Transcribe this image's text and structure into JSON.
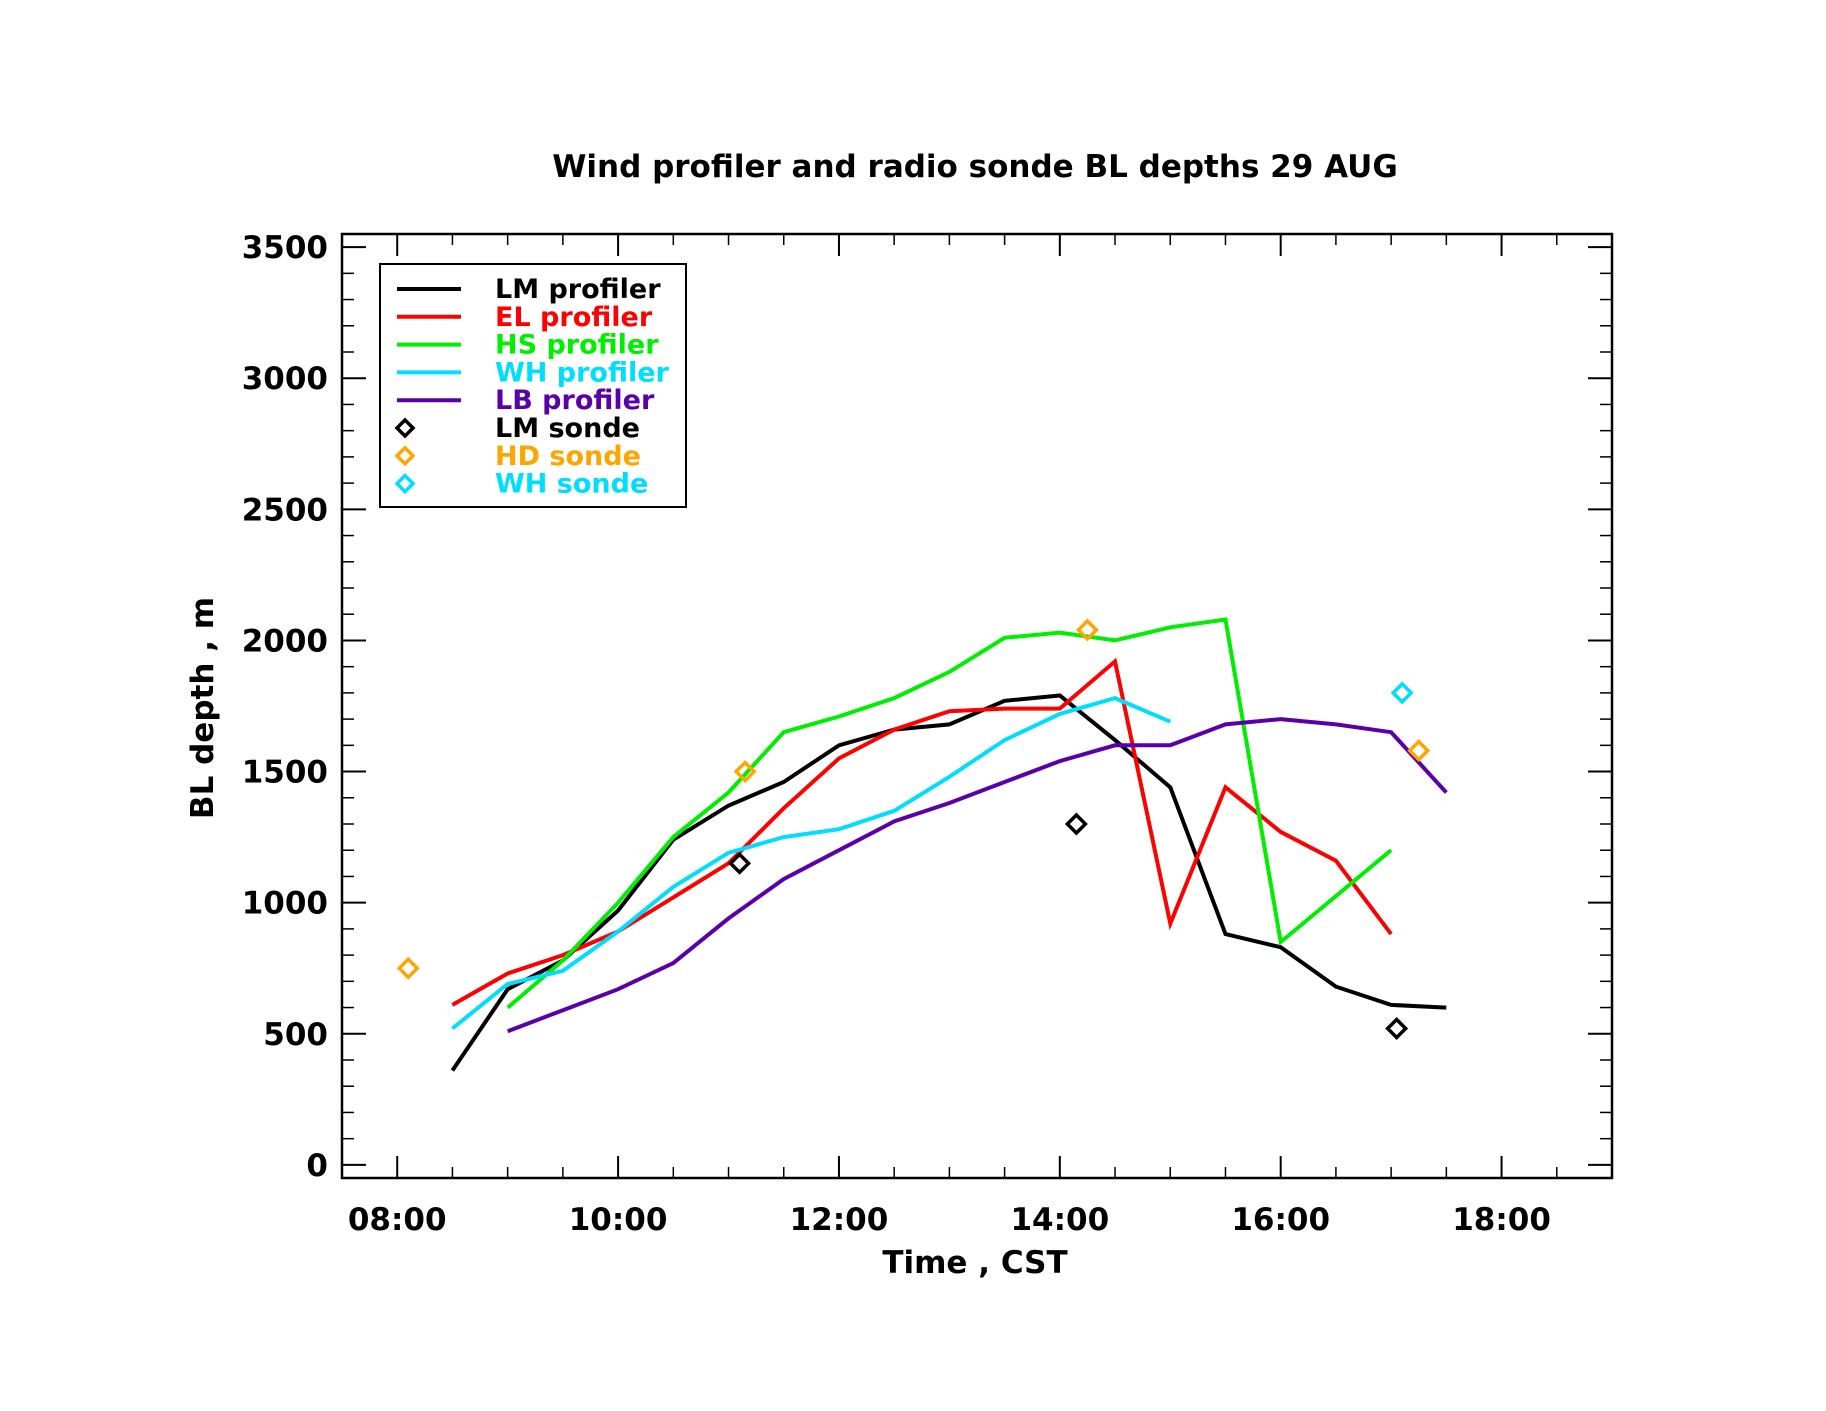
{
  "chart_data": {
    "type": "line",
    "title": "Wind profiler and radio sonde BL depths  29 AUG",
    "xlabel": "Time , CST",
    "ylabel": "BL depth , m",
    "xlim": [
      7.5,
      19.0
    ],
    "ylim": [
      -50,
      3550
    ],
    "grid": false,
    "legend_position": "top-left",
    "x_ticks": [
      {
        "value": 8,
        "label": "08:00"
      },
      {
        "value": 10,
        "label": "10:00"
      },
      {
        "value": 12,
        "label": "12:00"
      },
      {
        "value": 14,
        "label": "14:00"
      },
      {
        "value": 16,
        "label": "16:00"
      },
      {
        "value": 18,
        "label": "18:00"
      }
    ],
    "y_ticks": [
      {
        "value": 0,
        "label": "0"
      },
      {
        "value": 500,
        "label": "500"
      },
      {
        "value": 1000,
        "label": "1000"
      },
      {
        "value": 1500,
        "label": "1500"
      },
      {
        "value": 2000,
        "label": "2000"
      },
      {
        "value": 2500,
        "label": "2500"
      },
      {
        "value": 3000,
        "label": "3000"
      },
      {
        "value": 3500,
        "label": "3500"
      }
    ],
    "series": [
      {
        "name": "LM profiler",
        "kind": "line",
        "color": "#000000",
        "points": [
          [
            8.5,
            360
          ],
          [
            9.0,
            670
          ],
          [
            9.5,
            780
          ],
          [
            10.0,
            970
          ],
          [
            10.5,
            1240
          ],
          [
            11.0,
            1370
          ],
          [
            11.5,
            1460
          ],
          [
            12.0,
            1600
          ],
          [
            12.5,
            1660
          ],
          [
            13.0,
            1680
          ],
          [
            13.5,
            1770
          ],
          [
            14.0,
            1790
          ],
          [
            14.5,
            1620
          ],
          [
            15.0,
            1440
          ],
          [
            15.5,
            880
          ],
          [
            16.0,
            830
          ],
          [
            16.5,
            680
          ],
          [
            17.0,
            610
          ],
          [
            17.5,
            600
          ]
        ]
      },
      {
        "name": "EL profiler",
        "kind": "line",
        "color": "#ff0000",
        "points": [
          [
            8.5,
            610
          ],
          [
            9.0,
            730
          ],
          [
            9.5,
            800
          ],
          [
            10.0,
            890
          ],
          [
            10.5,
            1020
          ],
          [
            11.0,
            1150
          ],
          [
            11.5,
            1360
          ],
          [
            12.0,
            1550
          ],
          [
            12.5,
            1660
          ],
          [
            13.0,
            1730
          ],
          [
            13.5,
            1740
          ],
          [
            14.0,
            1740
          ],
          [
            14.5,
            1920
          ],
          [
            15.0,
            920
          ],
          [
            15.5,
            1440
          ],
          [
            16.0,
            1270
          ],
          [
            16.5,
            1160
          ],
          [
            17.0,
            880
          ]
        ]
      },
      {
        "name": "HS profiler",
        "kind": "line",
        "color": "#00ee00",
        "points": [
          [
            9.0,
            600
          ],
          [
            9.5,
            780
          ],
          [
            10.0,
            1000
          ],
          [
            10.5,
            1250
          ],
          [
            11.0,
            1420
          ],
          [
            11.5,
            1650
          ],
          [
            12.0,
            1710
          ],
          [
            12.5,
            1780
          ],
          [
            13.0,
            1880
          ],
          [
            13.5,
            2010
          ],
          [
            14.0,
            2030
          ],
          [
            14.5,
            2000
          ],
          [
            15.0,
            2050
          ],
          [
            15.5,
            2080
          ],
          [
            16.0,
            850
          ],
          [
            17.0,
            1200
          ]
        ]
      },
      {
        "name": "WH profiler",
        "kind": "line",
        "color": "#00ddff",
        "points": [
          [
            8.5,
            520
          ],
          [
            9.0,
            690
          ],
          [
            9.5,
            740
          ],
          [
            10.0,
            890
          ],
          [
            10.5,
            1060
          ],
          [
            11.0,
            1190
          ],
          [
            11.5,
            1250
          ],
          [
            12.0,
            1280
          ],
          [
            12.5,
            1350
          ],
          [
            13.0,
            1480
          ],
          [
            13.5,
            1620
          ],
          [
            14.0,
            1720
          ],
          [
            14.5,
            1780
          ],
          [
            15.0,
            1690
          ]
        ]
      },
      {
        "name": "LB profiler",
        "kind": "line",
        "color": "#5a00aa",
        "points": [
          [
            9.0,
            510
          ],
          [
            9.5,
            590
          ],
          [
            10.0,
            670
          ],
          [
            10.5,
            770
          ],
          [
            11.0,
            940
          ],
          [
            11.5,
            1090
          ],
          [
            12.0,
            1200
          ],
          [
            12.5,
            1310
          ],
          [
            13.0,
            1380
          ],
          [
            13.5,
            1460
          ],
          [
            14.0,
            1540
          ],
          [
            14.5,
            1600
          ],
          [
            15.0,
            1600
          ],
          [
            15.5,
            1680
          ],
          [
            16.0,
            1700
          ],
          [
            16.5,
            1680
          ],
          [
            17.0,
            1650
          ],
          [
            17.5,
            1420
          ]
        ]
      },
      {
        "name": "LM sonde",
        "kind": "marker",
        "color": "#000000",
        "points": [
          [
            11.1,
            1150
          ],
          [
            14.15,
            1300
          ],
          [
            17.05,
            520
          ]
        ]
      },
      {
        "name": "HD sonde",
        "kind": "marker",
        "color": "#ffa500",
        "points": [
          [
            8.1,
            750
          ],
          [
            11.15,
            1500
          ],
          [
            14.25,
            2040
          ],
          [
            17.25,
            1580
          ]
        ]
      },
      {
        "name": "WH sonde",
        "kind": "marker",
        "color": "#00ddff",
        "points": [
          [
            17.1,
            1800
          ]
        ]
      }
    ]
  }
}
